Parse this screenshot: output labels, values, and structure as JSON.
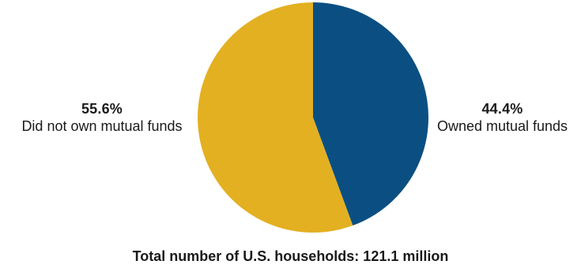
{
  "chart_data": {
    "type": "pie",
    "slices": [
      {
        "label": "Owned mutual funds",
        "value": 44.4,
        "value_label": "44.4%",
        "color": "#0b4f82"
      },
      {
        "label": "Did not own mutual funds",
        "value": 55.6,
        "value_label": "55.6%",
        "color": "#e3b022"
      }
    ],
    "start_angle": "12 o'clock",
    "direction": "clockwise",
    "footnote": "Total number of U.S. households: 121.1 million"
  }
}
